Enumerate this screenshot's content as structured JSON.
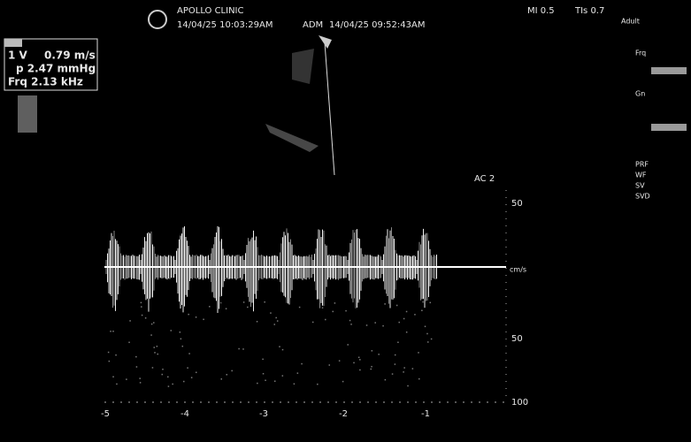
{
  "header": {
    "clinic": "APOLLO CLINIC",
    "datetime": "14/04/25 10:03:29AM",
    "user": "ADM",
    "exam_datetime": "14/04/25 09:52:43AM",
    "mi": "MI 0.5",
    "tis": "TIs 0.7"
  },
  "measurement": {
    "label": "1 V",
    "velocity": "0.79 m/s",
    "pressure": "p 2.47 mmHg",
    "frequency": "Frq 2.13 kHz"
  },
  "spectrum": {
    "mode": "AC 2",
    "unit": "cm/s",
    "scale_labels": [
      "50",
      "50",
      "100"
    ],
    "time_labels": [
      "-5",
      "-4",
      "-3",
      "-2",
      "-1"
    ]
  },
  "panel": {
    "labels": [
      "Adult",
      "Frq",
      "Gn",
      "PRF",
      "WF",
      "SV",
      "SVD"
    ]
  }
}
